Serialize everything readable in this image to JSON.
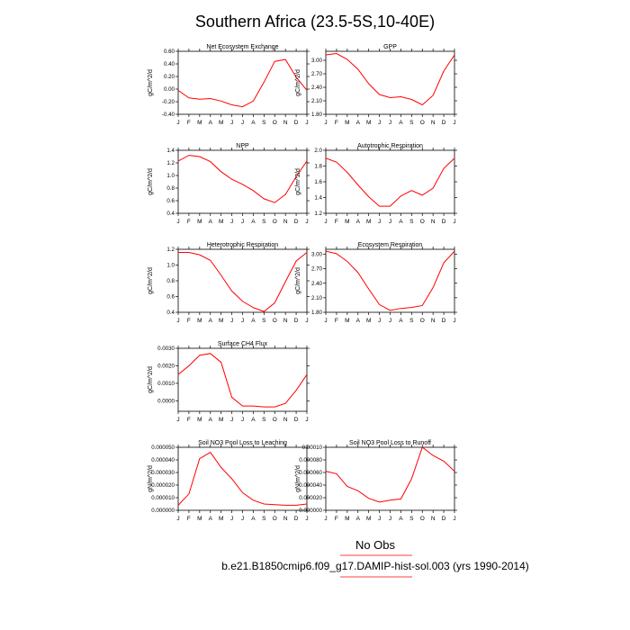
{
  "page": {
    "title": "Southern Africa (23.5-5S,10-40E)",
    "legend_label": "No Obs",
    "case_label": "b.e21.B1850cmip6.f09_g17.DAMIP-hist-sol.003 (yrs 1990-2014)",
    "model_color": "#ff0000"
  },
  "chart_data": [
    {
      "type": "line",
      "title": "Net Ecosystem Exchange",
      "ylabel": "gC/m^2/d",
      "categories": [
        "J",
        "F",
        "M",
        "A",
        "M",
        "J",
        "J",
        "A",
        "S",
        "O",
        "N",
        "D",
        "J"
      ],
      "ylim": [
        -0.4,
        0.6
      ],
      "yticks": [
        -0.4,
        -0.2,
        0.0,
        0.2,
        0.4,
        0.6
      ],
      "ytick_labels": [
        "-0.40",
        "-0.20",
        "0.00",
        "0.20",
        "0.40",
        "0.60"
      ],
      "values": [
        -0.02,
        -0.14,
        -0.16,
        -0.15,
        -0.19,
        -0.25,
        -0.28,
        -0.19,
        0.11,
        0.44,
        0.47,
        0.19,
        -0.02
      ]
    },
    {
      "type": "line",
      "title": "GPP",
      "ylabel": "gC/m^2/d",
      "categories": [
        "J",
        "F",
        "M",
        "A",
        "M",
        "J",
        "J",
        "A",
        "S",
        "O",
        "N",
        "D",
        "J"
      ],
      "ylim": [
        1.8,
        3.2
      ],
      "yticks": [
        1.8,
        2.1,
        2.4,
        2.7,
        3.0
      ],
      "ytick_labels": [
        "1.80",
        "2.10",
        "2.40",
        "2.70",
        "3.00"
      ],
      "values": [
        3.12,
        3.15,
        3.02,
        2.8,
        2.48,
        2.24,
        2.17,
        2.19,
        2.13,
        2.01,
        2.22,
        2.76,
        3.12
      ]
    },
    {
      "type": "line",
      "title": "NPP",
      "ylabel": "gC/m^2/d",
      "categories": [
        "J",
        "F",
        "M",
        "A",
        "M",
        "J",
        "J",
        "A",
        "S",
        "O",
        "N",
        "D",
        "J"
      ],
      "ylim": [
        0.4,
        1.4
      ],
      "yticks": [
        0.4,
        0.6,
        0.8,
        1.0,
        1.2,
        1.4
      ],
      "ytick_labels": [
        "0.4",
        "0.6",
        "0.8",
        "1.0",
        "1.2",
        "1.4"
      ],
      "values": [
        1.23,
        1.32,
        1.3,
        1.22,
        1.06,
        0.94,
        0.86,
        0.76,
        0.63,
        0.57,
        0.7,
        0.98,
        1.23
      ]
    },
    {
      "type": "line",
      "title": "Autotrophic Respiration",
      "ylabel": "gC/m^2/d",
      "categories": [
        "J",
        "F",
        "M",
        "A",
        "M",
        "J",
        "J",
        "A",
        "S",
        "O",
        "N",
        "D",
        "J"
      ],
      "ylim": [
        1.2,
        2.0
      ],
      "yticks": [
        1.2,
        1.4,
        1.6,
        1.8,
        2.0
      ],
      "ytick_labels": [
        "1.2",
        "1.4",
        "1.6",
        "1.8",
        "2.0"
      ],
      "values": [
        1.9,
        1.85,
        1.72,
        1.56,
        1.41,
        1.29,
        1.29,
        1.42,
        1.49,
        1.43,
        1.52,
        1.77,
        1.9
      ]
    },
    {
      "type": "line",
      "title": "Heterotrophic Respiration",
      "ylabel": "gC/m^2/d",
      "categories": [
        "J",
        "F",
        "M",
        "A",
        "M",
        "J",
        "J",
        "A",
        "S",
        "O",
        "N",
        "D",
        "J"
      ],
      "ylim": [
        0.4,
        1.2
      ],
      "yticks": [
        0.4,
        0.6,
        0.8,
        1.0,
        1.2
      ],
      "ytick_labels": [
        "0.4",
        "0.6",
        "0.8",
        "1.0",
        "1.2"
      ],
      "values": [
        1.16,
        1.16,
        1.13,
        1.06,
        0.87,
        0.67,
        0.54,
        0.46,
        0.41,
        0.52,
        0.79,
        1.05,
        1.16
      ]
    },
    {
      "type": "line",
      "title": "Ecosystem Respiration",
      "ylabel": "gC/m^2/d",
      "categories": [
        "J",
        "F",
        "M",
        "A",
        "M",
        "J",
        "J",
        "A",
        "S",
        "O",
        "N",
        "D",
        "J"
      ],
      "ylim": [
        1.8,
        3.1
      ],
      "yticks": [
        1.8,
        2.1,
        2.4,
        2.7,
        3.0
      ],
      "ytick_labels": [
        "1.80",
        "2.10",
        "2.40",
        "2.70",
        "3.00"
      ],
      "values": [
        3.06,
        3.01,
        2.85,
        2.62,
        2.28,
        1.96,
        1.84,
        1.88,
        1.9,
        1.94,
        2.31,
        2.82,
        3.06
      ]
    },
    {
      "type": "line",
      "title": "Surface CH4 Flux",
      "ylabel": "gC/m^2/d",
      "categories": [
        "J",
        "F",
        "M",
        "A",
        "M",
        "J",
        "J",
        "A",
        "S",
        "O",
        "N",
        "D",
        "J"
      ],
      "ylim": [
        -0.0006,
        0.003
      ],
      "yticks": [
        0.0,
        0.001,
        0.002,
        0.003
      ],
      "ytick_labels": [
        "0.0000",
        "0.0010",
        "0.0020",
        "0.0030"
      ],
      "values": [
        0.0015,
        0.002,
        0.0026,
        0.0027,
        0.0022,
        0.0002,
        -0.0003,
        -0.0003,
        -0.00035,
        -0.00035,
        -0.00015,
        0.0006,
        0.0015
      ]
    },
    {
      "type": "line",
      "title": "Soil NO3 Pool Loss to Leaching",
      "ylabel": "gN/m^2/d",
      "categories": [
        "J",
        "F",
        "M",
        "A",
        "M",
        "J",
        "J",
        "A",
        "S",
        "O",
        "N",
        "D",
        "J"
      ],
      "ylim": [
        0.0,
        5e-05
      ],
      "yticks": [
        0.0,
        1e-05,
        2e-05,
        3e-05,
        4e-05,
        5e-05
      ],
      "ytick_labels": [
        "0.000000",
        "0.000010",
        "0.000020",
        "0.000030",
        "0.000040",
        "0.000050"
      ],
      "values": [
        4e-06,
        1.3e-05,
        4.1e-05,
        4.6e-05,
        3.4e-05,
        2.5e-05,
        1.4e-05,
        8e-06,
        5e-06,
        4.5e-06,
        4e-06,
        4e-06,
        5e-06
      ]
    },
    {
      "type": "line",
      "title": "Soil NO3 Pool Loss to Runoff",
      "ylabel": "gN/m^2/d",
      "categories": [
        "J",
        "F",
        "M",
        "A",
        "M",
        "J",
        "J",
        "A",
        "S",
        "O",
        "N",
        "D",
        "J"
      ],
      "ylim": [
        0.0,
        0.0001
      ],
      "yticks": [
        0.0,
        2e-05,
        4e-05,
        6e-05,
        8e-05,
        0.0001
      ],
      "ytick_labels": [
        "0.000000",
        "0.000020",
        "0.000040",
        "0.000060",
        "0.000080",
        "0.00010"
      ],
      "values": [
        6.2e-05,
        5.8e-05,
        3.8e-05,
        3.1e-05,
        1.9e-05,
        1.3e-05,
        1.6e-05,
        1.8e-05,
        5e-05,
        0.0001,
        8.7e-05,
        7.8e-05,
        6.2e-05
      ]
    }
  ]
}
